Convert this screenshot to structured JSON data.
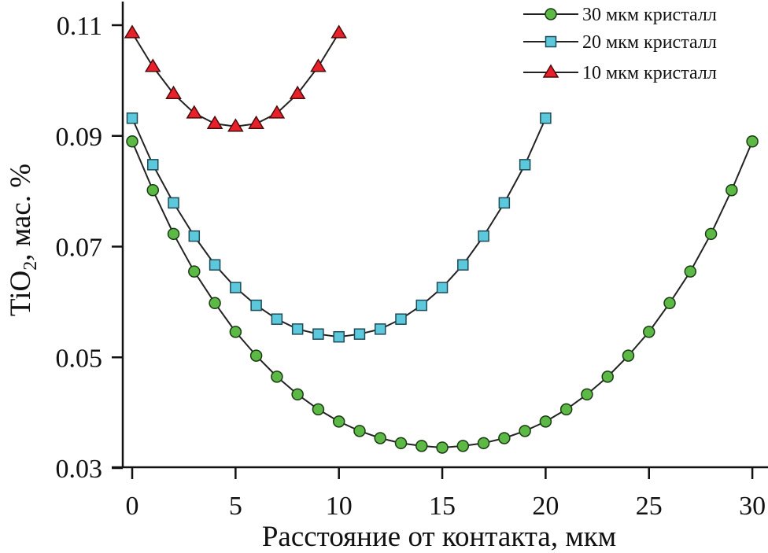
{
  "chart_data": {
    "type": "line",
    "xlabel": "Расстояние от контакта, мкм",
    "ylabel": "TiO",
    "ylabel_sub": "2",
    "ylabel_rest": ", мас. %",
    "xlim": [
      -0.5,
      30.5
    ],
    "ylim": [
      0.03,
      0.113
    ],
    "xticks": [
      "0",
      "5",
      "10",
      "15",
      "20",
      "25",
      "30"
    ],
    "yticks": [
      "0.03",
      "0.05",
      "0.07",
      "0.09",
      "0.11"
    ],
    "grid": false,
    "legend_position": "top-right",
    "series": [
      {
        "name": "30 мкм кристалл",
        "marker": "circle",
        "color": "#5cb946",
        "x": [
          0,
          1,
          2,
          3,
          4,
          5,
          6,
          7,
          8,
          9,
          10,
          11,
          12,
          13,
          14,
          15,
          16,
          17,
          18,
          19,
          20,
          21,
          22,
          23,
          24,
          25,
          26,
          27,
          28,
          29,
          30
        ],
        "values": [
          0.089,
          0.0802,
          0.0723,
          0.0655,
          0.0598,
          0.0546,
          0.0503,
          0.0465,
          0.0433,
          0.0406,
          0.0384,
          0.0367,
          0.0354,
          0.0345,
          0.034,
          0.0337,
          0.034,
          0.0345,
          0.0354,
          0.0367,
          0.0384,
          0.0406,
          0.0433,
          0.0465,
          0.0503,
          0.0546,
          0.0598,
          0.0655,
          0.0723,
          0.0802,
          0.089
        ]
      },
      {
        "name": "20 мкм кристалл",
        "marker": "square",
        "color": "#5bc8dc",
        "x": [
          0,
          1,
          2,
          3,
          4,
          5,
          6,
          7,
          8,
          9,
          10,
          11,
          12,
          13,
          14,
          15,
          16,
          17,
          18,
          19,
          20
        ],
        "values": [
          0.0932,
          0.0848,
          0.0779,
          0.0719,
          0.0667,
          0.0626,
          0.0594,
          0.0569,
          0.0551,
          0.0542,
          0.0537,
          0.0542,
          0.0551,
          0.0569,
          0.0594,
          0.0626,
          0.0667,
          0.0719,
          0.0779,
          0.0848,
          0.0932
        ]
      },
      {
        "name": "10 мкм кристалл",
        "marker": "triangle",
        "color": "#e8202a",
        "x": [
          0,
          1,
          2,
          3,
          4,
          5,
          6,
          7,
          8,
          9,
          10
        ],
        "values": [
          0.1086,
          0.1025,
          0.0976,
          0.0941,
          0.0922,
          0.0917,
          0.0922,
          0.0941,
          0.0976,
          0.1025,
          0.1086
        ]
      }
    ]
  }
}
